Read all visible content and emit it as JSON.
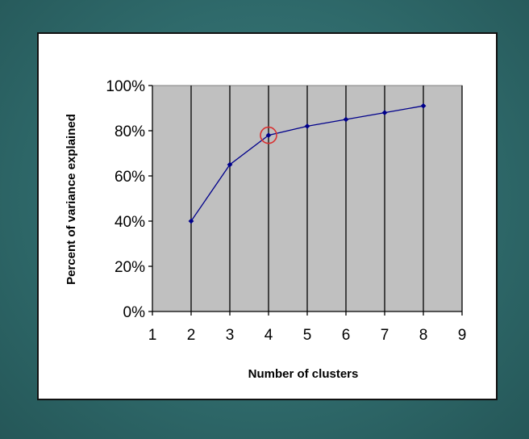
{
  "chart_data": {
    "type": "line",
    "title": "",
    "xlabel": "Number of clusters",
    "ylabel": "Percent of variance explained",
    "x_ticks": [
      "1",
      "2",
      "3",
      "4",
      "5",
      "6",
      "7",
      "8",
      "9"
    ],
    "y_ticks": [
      "0%",
      "20%",
      "40%",
      "60%",
      "80%",
      "100%"
    ],
    "xlim": [
      1,
      9
    ],
    "ylim": [
      0,
      100
    ],
    "grid": "vertical",
    "series": [
      {
        "x": [
          2,
          3,
          4,
          5,
          6,
          7,
          8
        ],
        "y": [
          40,
          65,
          78,
          82,
          85,
          88,
          91
        ]
      }
    ],
    "highlight": {
      "x": 4,
      "y": 78
    },
    "colors": {
      "plot_background": "#c0c0c0",
      "line": "#00008b",
      "marker": "#00008b",
      "highlight_circle": "#d93030",
      "grid": "#000000"
    }
  }
}
